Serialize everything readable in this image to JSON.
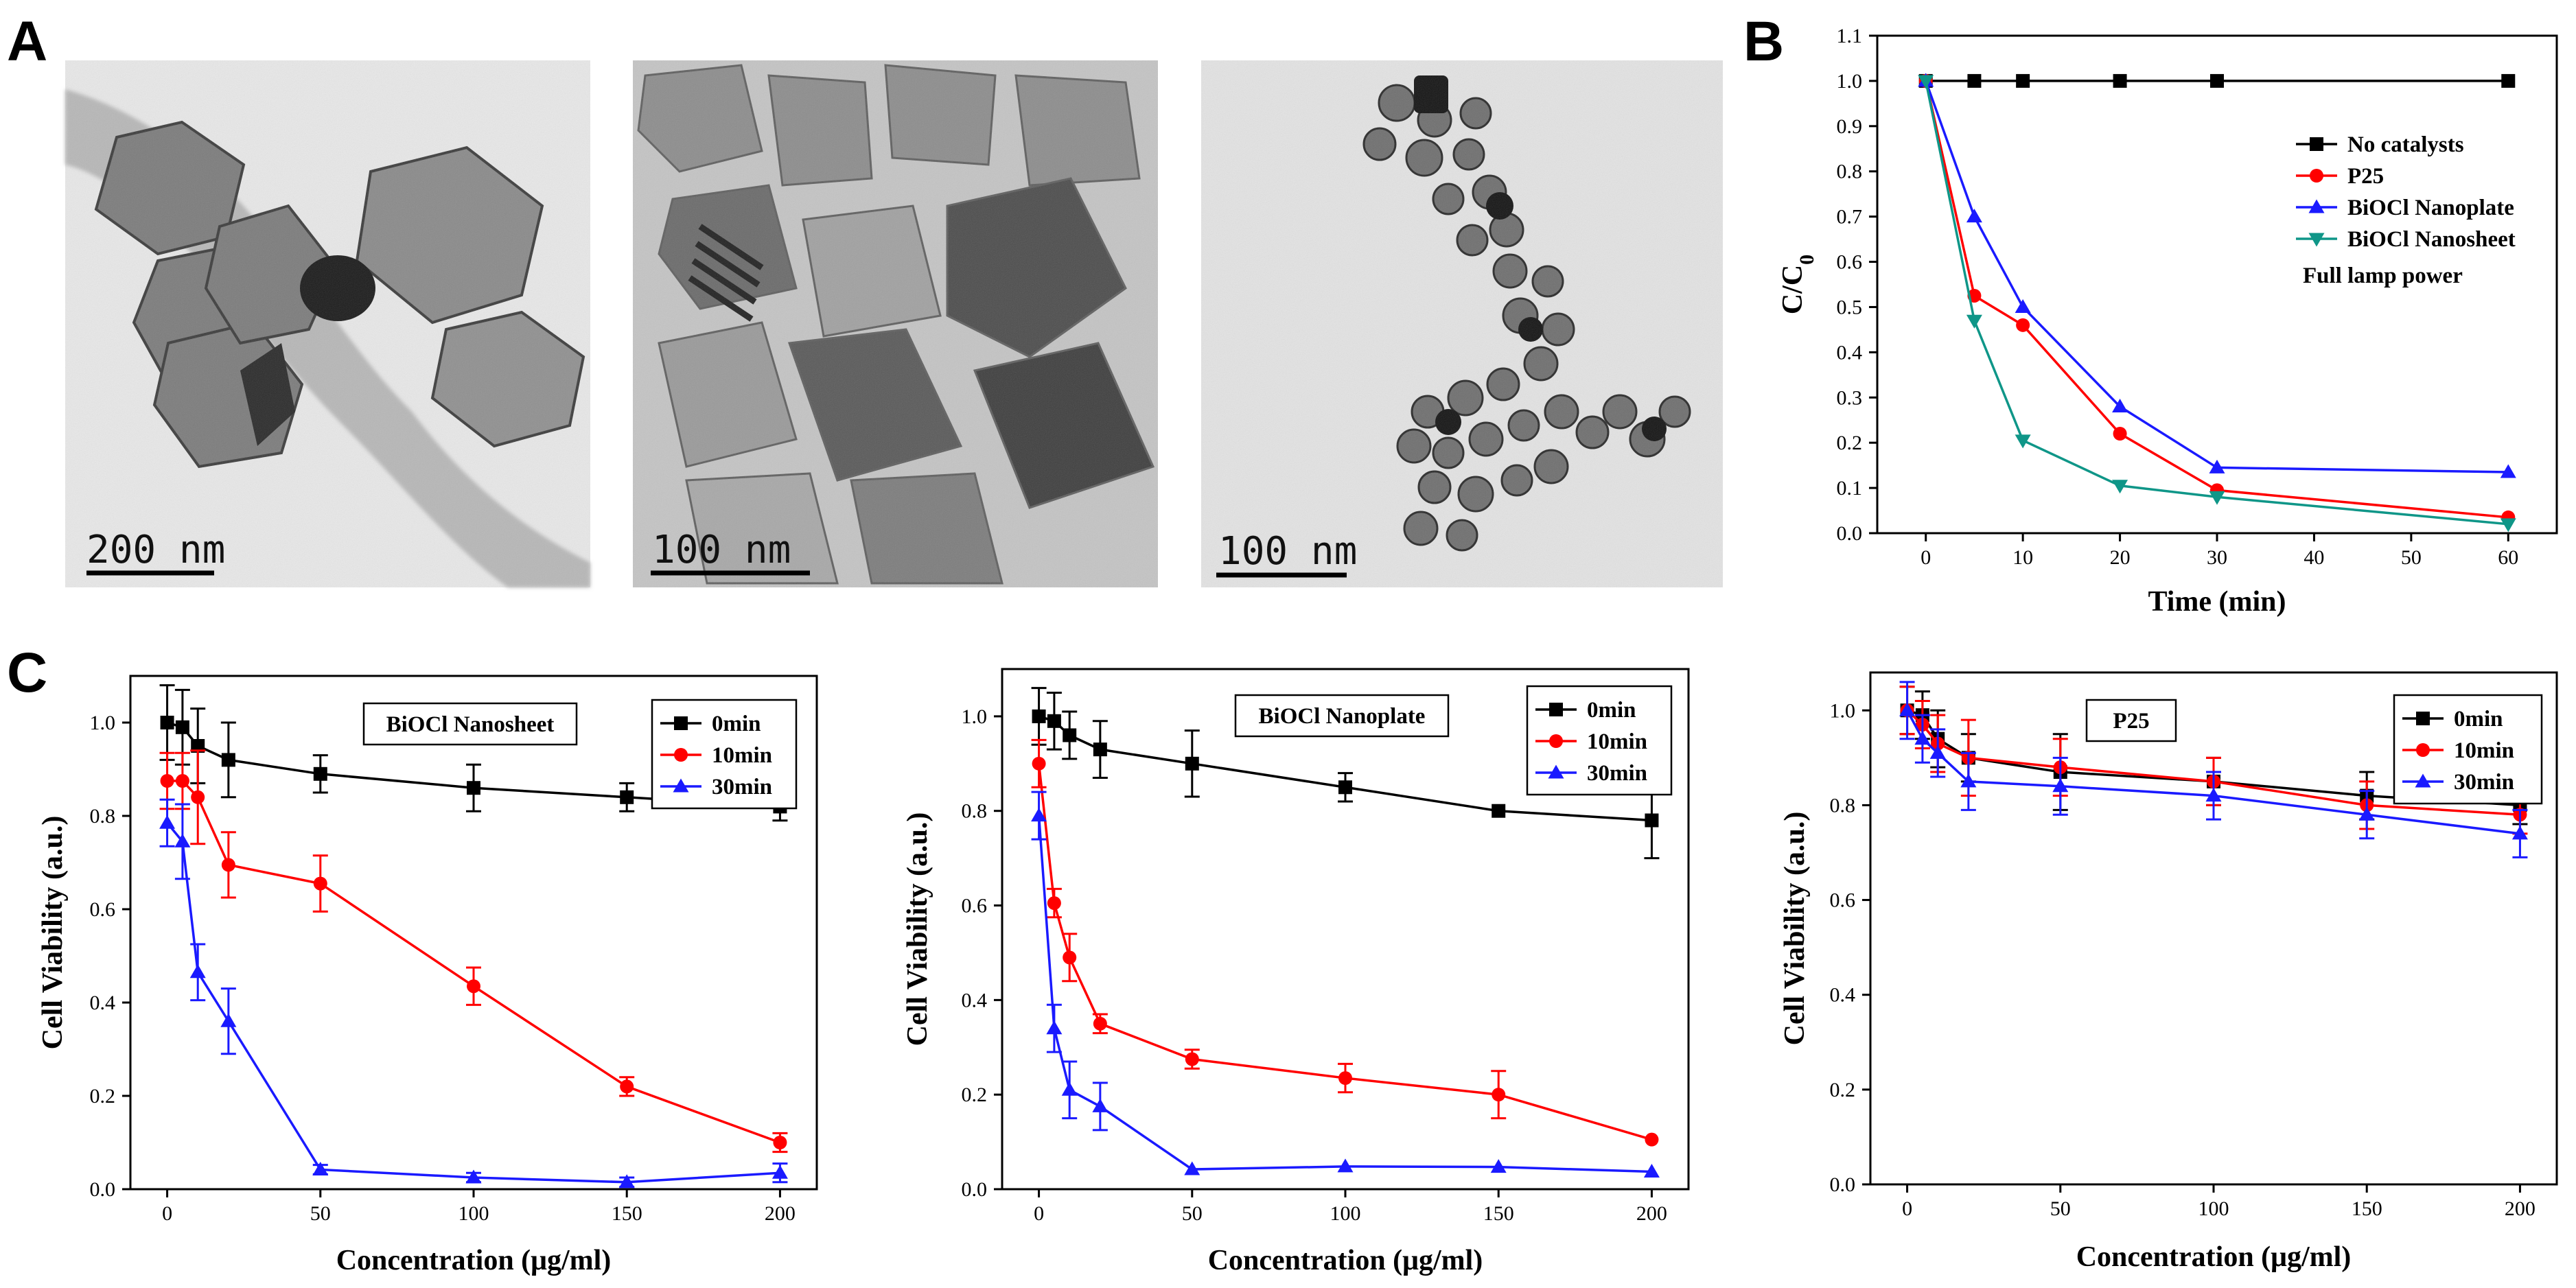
{
  "panel_letters": [
    "A",
    "B",
    "C"
  ],
  "micrographs": [
    {
      "scale_label": "200 nm"
    },
    {
      "scale_label": "100 nm"
    },
    {
      "scale_label": "100 nm"
    }
  ],
  "colors": {
    "black": "#000000",
    "red": "#ff0000",
    "blue": "#1a1aff",
    "teal": "#0f9688"
  },
  "chart_data": [
    {
      "type": "line",
      "panel": "B",
      "xlabel": "Time (min)",
      "ylabel": "C/C0",
      "xlim": [
        -5,
        65
      ],
      "ylim": [
        0,
        1.1
      ],
      "xticks": [
        0,
        10,
        20,
        30,
        40,
        50,
        60
      ],
      "yticks": [
        0.0,
        0.1,
        0.2,
        0.3,
        0.4,
        0.5,
        0.6,
        0.7,
        0.8,
        0.9,
        1.0,
        1.1
      ],
      "ytick_decimals": 1,
      "note": "Full lamp power",
      "legend_position": "top-right",
      "series": [
        {
          "name": "No catalysts",
          "color": "#000000",
          "marker": "square",
          "x": [
            0,
            5,
            10,
            20,
            30,
            60
          ],
          "y": [
            1.0,
            1.0,
            1.0,
            1.0,
            1.0,
            1.0
          ]
        },
        {
          "name": "P25",
          "color": "#ff0000",
          "marker": "circle",
          "x": [
            0,
            5,
            10,
            20,
            30,
            60
          ],
          "y": [
            1.0,
            0.525,
            0.46,
            0.22,
            0.095,
            0.035
          ]
        },
        {
          "name": "BiOCl Nanoplate",
          "color": "#1a1aff",
          "marker": "triangle-up",
          "x": [
            0,
            5,
            10,
            20,
            30,
            60
          ],
          "y": [
            1.0,
            0.7,
            0.5,
            0.28,
            0.145,
            0.135
          ]
        },
        {
          "name": "BiOCl Nanosheet",
          "color": "#0f9688",
          "marker": "triangle-down",
          "x": [
            0,
            5,
            10,
            20,
            30,
            60
          ],
          "y": [
            1.0,
            0.47,
            0.205,
            0.105,
            0.08,
            0.02
          ]
        }
      ]
    },
    {
      "type": "line",
      "panel": "C-1",
      "title": "BiOCl Nanosheet",
      "xlabel": "Concentration (μg/ml)",
      "ylabel": "Cell Viability (a.u.)",
      "xlim": [
        -12,
        212
      ],
      "ylim": [
        0,
        1.1
      ],
      "xticks": [
        0,
        50,
        100,
        150,
        200
      ],
      "yticks": [
        0.0,
        0.2,
        0.4,
        0.6,
        0.8,
        1.0
      ],
      "ytick_decimals": 1,
      "legend_position": "top-right",
      "series": [
        {
          "name": "0min",
          "color": "#000000",
          "marker": "square",
          "x": [
            0,
            5,
            10,
            20,
            50,
            100,
            150,
            200
          ],
          "y": [
            1.0,
            0.99,
            0.95,
            0.92,
            0.89,
            0.86,
            0.84,
            0.82
          ],
          "err": [
            0.08,
            0.08,
            0.08,
            0.08,
            0.04,
            0.05,
            0.03,
            0.03
          ]
        },
        {
          "name": "10min",
          "color": "#ff0000",
          "marker": "circle",
          "x": [
            0,
            5,
            10,
            20,
            50,
            100,
            150,
            200
          ],
          "y": [
            0.875,
            0.875,
            0.84,
            0.695,
            0.655,
            0.435,
            0.22,
            0.1
          ],
          "err": [
            0.06,
            0.06,
            0.1,
            0.07,
            0.06,
            0.04,
            0.02,
            0.02
          ]
        },
        {
          "name": "30min",
          "color": "#1a1aff",
          "marker": "triangle-up",
          "x": [
            0,
            5,
            10,
            20,
            50,
            100,
            150,
            200
          ],
          "y": [
            0.785,
            0.745,
            0.465,
            0.36,
            0.042,
            0.025,
            0.015,
            0.035
          ],
          "err": [
            0.05,
            0.08,
            0.06,
            0.07,
            0.01,
            0.01,
            0.01,
            0.02
          ]
        }
      ]
    },
    {
      "type": "line",
      "panel": "C-2",
      "title": "BiOCl Nanoplate",
      "xlabel": "Concentration (μg/ml)",
      "ylabel": "Cell Viability (a.u.)",
      "xlim": [
        -12,
        212
      ],
      "ylim": [
        0,
        1.1
      ],
      "xticks": [
        0,
        50,
        100,
        150,
        200
      ],
      "yticks": [
        0.0,
        0.2,
        0.4,
        0.6,
        0.8,
        1.0
      ],
      "ytick_decimals": 1,
      "legend_position": "top-right",
      "series": [
        {
          "name": "0min",
          "color": "#000000",
          "marker": "square",
          "x": [
            0,
            5,
            10,
            20,
            50,
            100,
            150,
            200
          ],
          "y": [
            1.0,
            0.99,
            0.96,
            0.93,
            0.9,
            0.85,
            0.8,
            0.78
          ],
          "err": [
            0.06,
            0.06,
            0.05,
            0.06,
            0.07,
            0.03,
            0.0,
            0.08
          ]
        },
        {
          "name": "10min",
          "color": "#ff0000",
          "marker": "circle",
          "x": [
            0,
            5,
            10,
            20,
            50,
            100,
            150,
            200
          ],
          "y": [
            0.9,
            0.605,
            0.49,
            0.35,
            0.275,
            0.235,
            0.2,
            0.105
          ],
          "err": [
            0.05,
            0.03,
            0.05,
            0.02,
            0.02,
            0.03,
            0.05,
            0.0
          ]
        },
        {
          "name": "30min",
          "color": "#1a1aff",
          "marker": "triangle-up",
          "x": [
            0,
            5,
            10,
            20,
            50,
            100,
            150,
            200
          ],
          "y": [
            0.79,
            0.34,
            0.21,
            0.175,
            0.042,
            0.048,
            0.047,
            0.037
          ],
          "err": [
            0.05,
            0.05,
            0.06,
            0.05,
            0.0,
            0.0,
            0.0,
            0.0
          ]
        }
      ]
    },
    {
      "type": "line",
      "panel": "C-3",
      "title": "P25",
      "xlabel": "Concentration (μg/ml)",
      "ylabel": "Cell Viability (a.u.)",
      "xlim": [
        -12,
        212
      ],
      "ylim": [
        0,
        1.08
      ],
      "xticks": [
        0,
        50,
        100,
        150,
        200
      ],
      "yticks": [
        0.0,
        0.2,
        0.4,
        0.6,
        0.8,
        1.0
      ],
      "ytick_decimals": 1,
      "legend_position": "top-right",
      "series": [
        {
          "name": "0min",
          "color": "#000000",
          "marker": "square",
          "x": [
            0,
            5,
            10,
            20,
            50,
            100,
            150,
            200
          ],
          "y": [
            1.0,
            0.99,
            0.94,
            0.9,
            0.87,
            0.85,
            0.82,
            0.8
          ],
          "err": [
            0.05,
            0.05,
            0.06,
            0.05,
            0.08,
            0.05,
            0.05,
            0.04
          ]
        },
        {
          "name": "10min",
          "color": "#ff0000",
          "marker": "circle",
          "x": [
            0,
            5,
            10,
            20,
            50,
            100,
            150,
            200
          ],
          "y": [
            1.0,
            0.97,
            0.93,
            0.9,
            0.88,
            0.85,
            0.8,
            0.78
          ],
          "err": [
            0.05,
            0.05,
            0.06,
            0.08,
            0.06,
            0.05,
            0.05,
            0.04
          ]
        },
        {
          "name": "30min",
          "color": "#1a1aff",
          "marker": "triangle-up",
          "x": [
            0,
            5,
            10,
            20,
            50,
            100,
            150,
            200
          ],
          "y": [
            1.0,
            0.94,
            0.91,
            0.85,
            0.84,
            0.82,
            0.78,
            0.74
          ],
          "err": [
            0.06,
            0.05,
            0.05,
            0.06,
            0.06,
            0.05,
            0.05,
            0.05
          ]
        }
      ]
    }
  ]
}
